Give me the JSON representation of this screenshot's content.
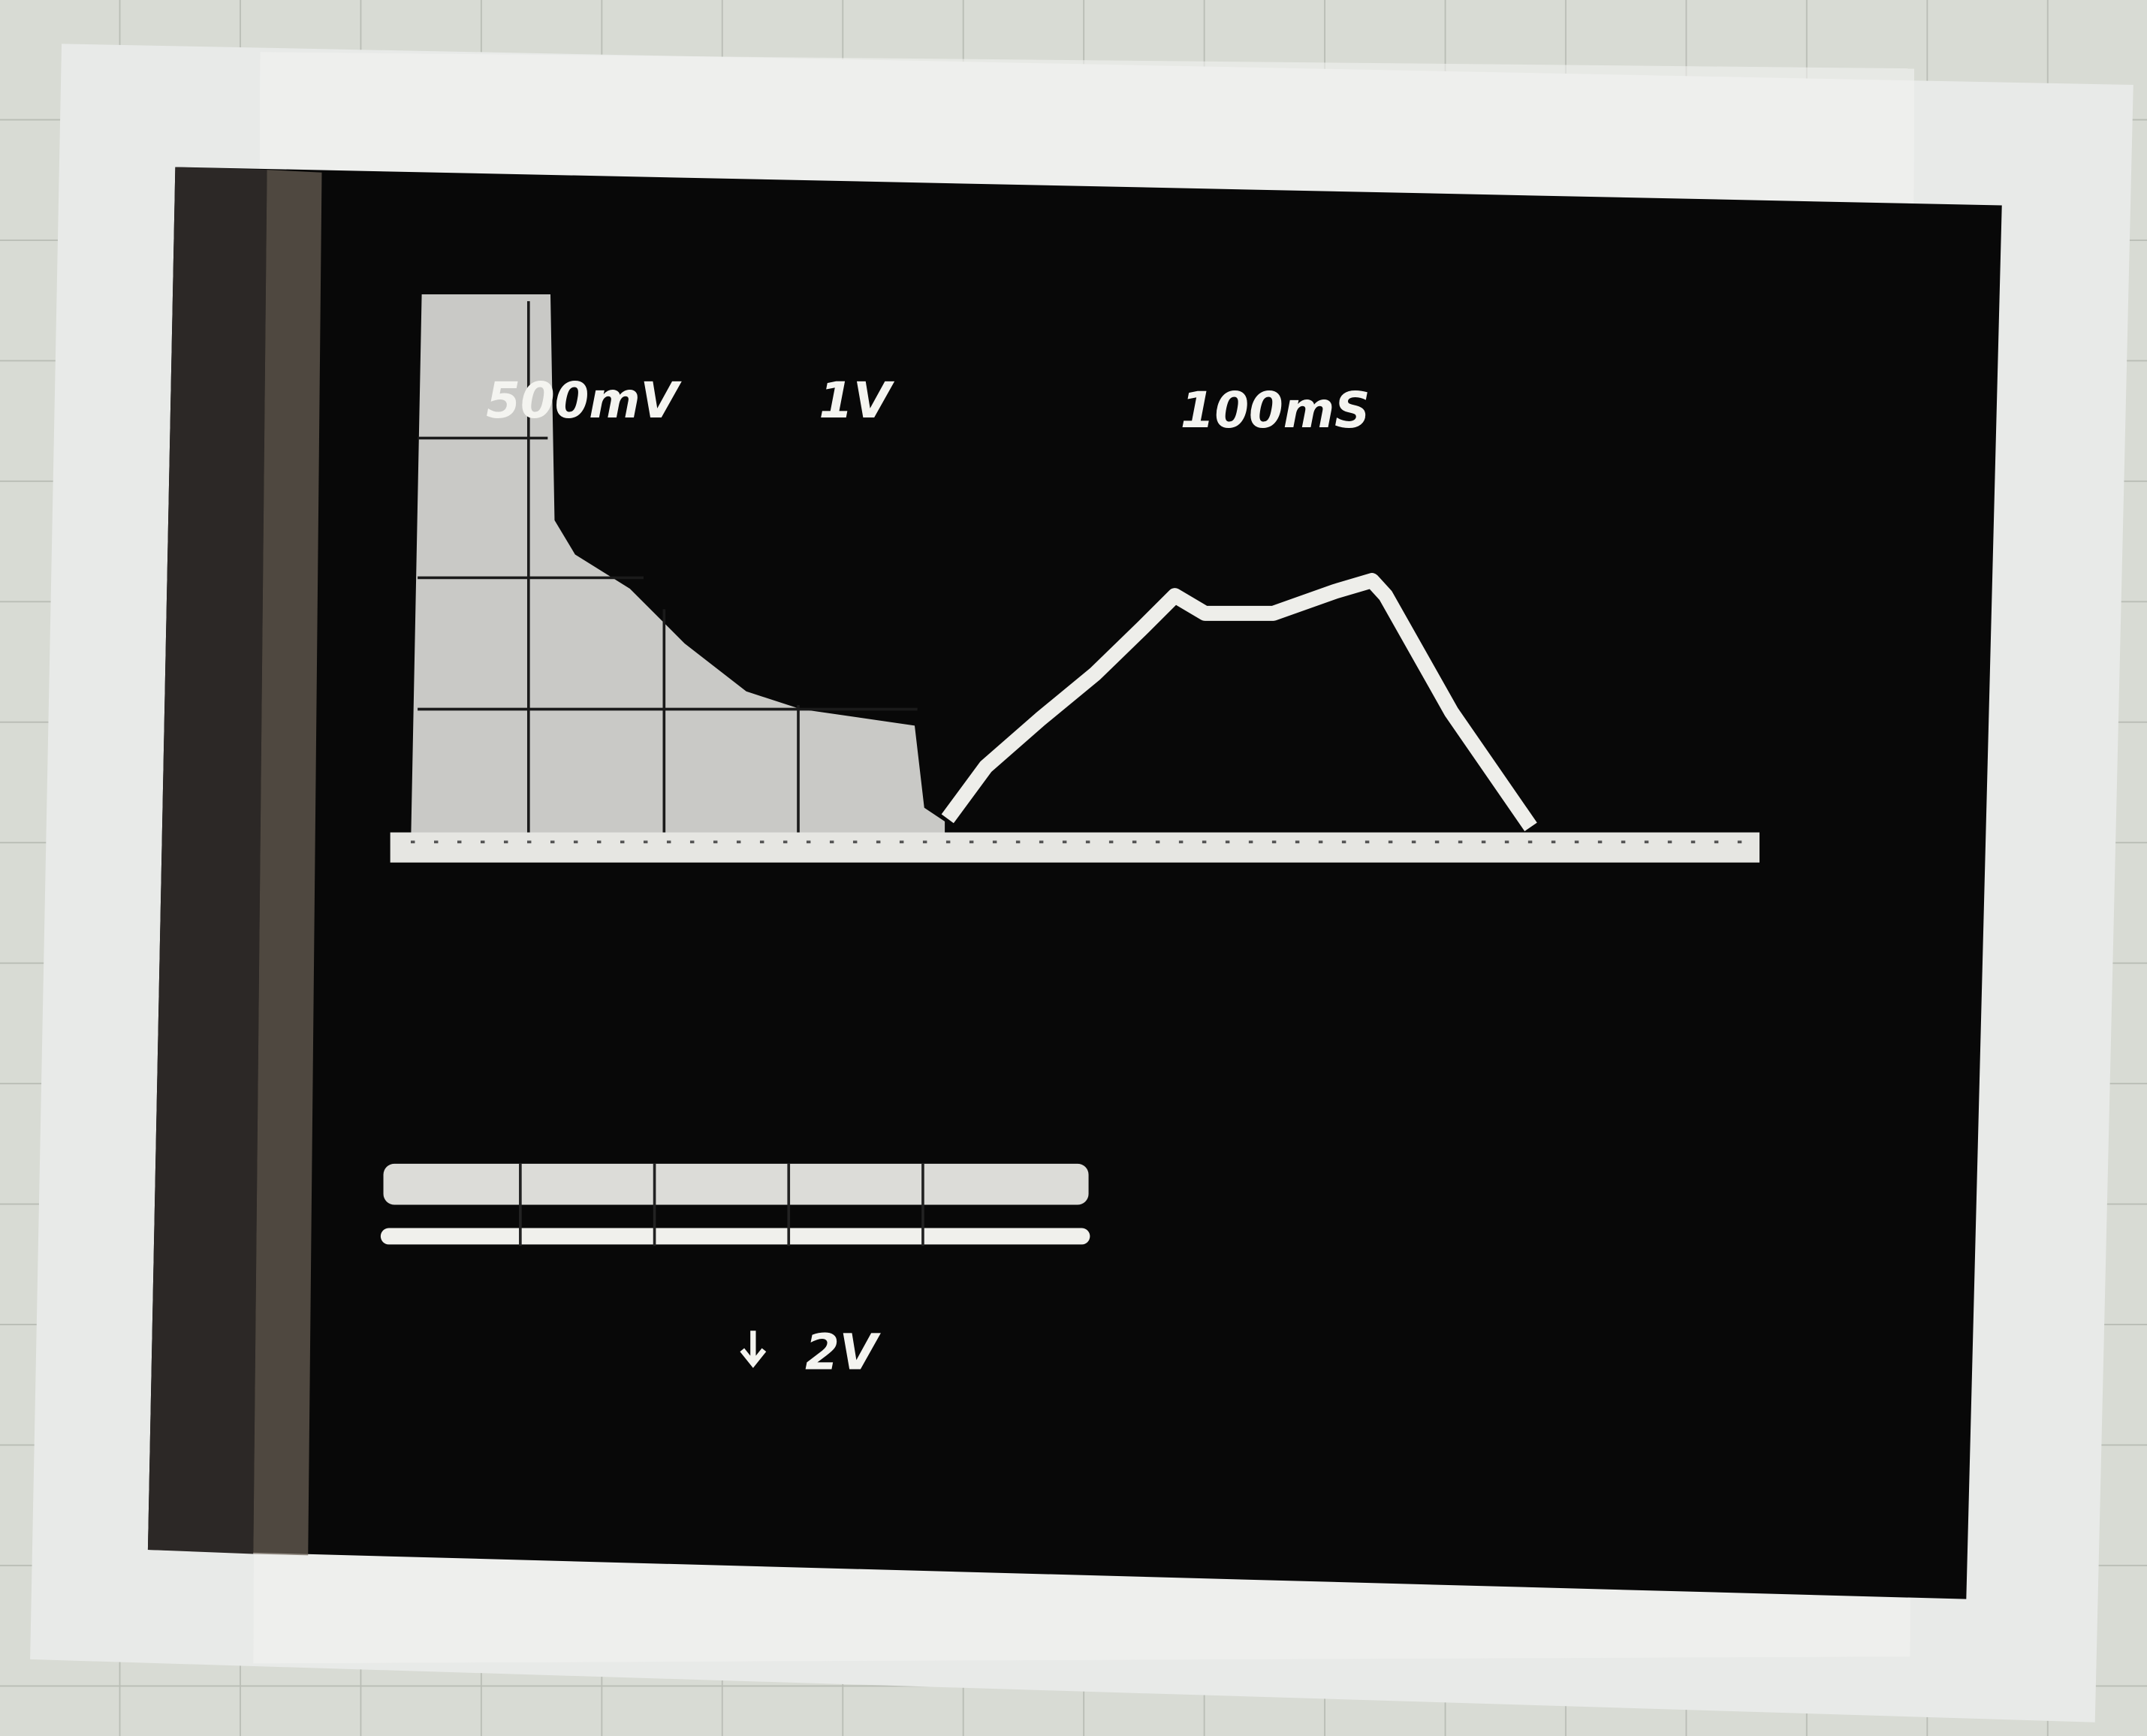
{
  "labels": {
    "ch1_scale": "500mV",
    "ch2_scale": "1V",
    "timebase": "100mS",
    "ch2_offset": "2V"
  }
}
